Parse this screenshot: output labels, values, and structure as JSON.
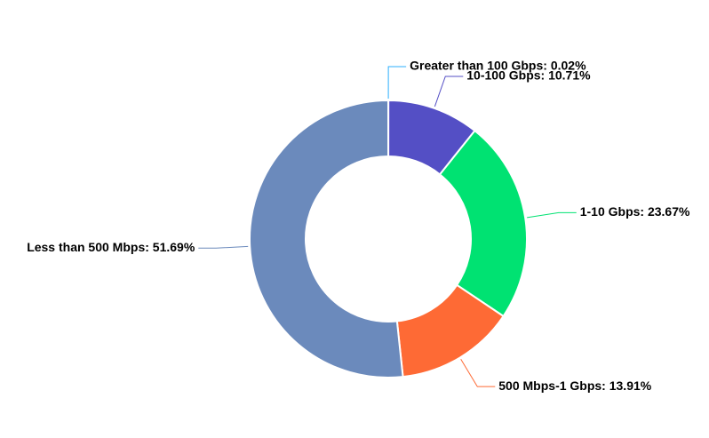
{
  "chart_data": {
    "type": "donut",
    "values": [
      0.02,
      10.71,
      23.67,
      13.91,
      51.69
    ],
    "value_labels": [
      "Greater than 100 Gbps: 0.02%",
      "10-100 Gbps: 10.71%",
      "1-10 Gbps: 23.67%",
      "500 Mbps-1 Gbps: 13.91%",
      "Less than 500 Mbps: 51.69%"
    ],
    "colors": [
      "#2caffe",
      "#544fc5",
      "#00e272",
      "#fe6a35",
      "#6b8abc"
    ]
  }
}
